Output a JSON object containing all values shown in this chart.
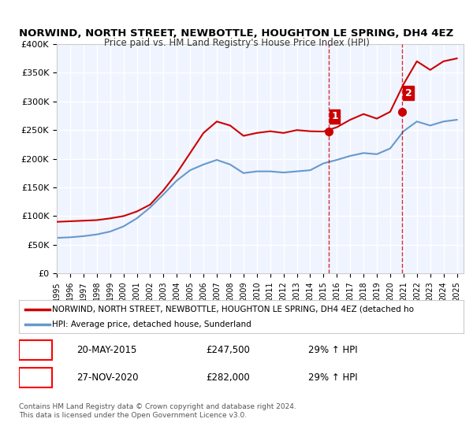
{
  "title": "NORWIND, NORTH STREET, NEWBOTTLE, HOUGHTON LE SPRING, DH4 4EZ",
  "subtitle": "Price paid vs. HM Land Registry's House Price Index (HPI)",
  "legend_red": "NORWIND, NORTH STREET, NEWBOTTLE, HOUGHTON LE SPRING, DH4 4EZ (detached ho",
  "legend_blue": "HPI: Average price, detached house, Sunderland",
  "footer": "Contains HM Land Registry data © Crown copyright and database right 2024.\nThis data is licensed under the Open Government Licence v3.0.",
  "sale1_label": "1",
  "sale1_date": "20-MAY-2015",
  "sale1_price": "£247,500",
  "sale1_hpi": "29% ↑ HPI",
  "sale2_label": "2",
  "sale2_date": "27-NOV-2020",
  "sale2_price": "£282,000",
  "sale2_hpi": "29% ↑ HPI",
  "sale1_x": 2015.38,
  "sale1_y": 247500,
  "sale2_x": 2020.9,
  "sale2_y": 282000,
  "ylim": [
    0,
    400000
  ],
  "xlim": [
    1995,
    2025.5
  ],
  "background_color": "#ffffff",
  "plot_bg_color": "#f0f4ff",
  "grid_color": "#ffffff",
  "red_color": "#cc0000",
  "blue_color": "#6699cc",
  "vline_color": "#cc0000",
  "years_red": [
    1995,
    1996,
    1997,
    1998,
    1999,
    2000,
    2001,
    2002,
    2003,
    2004,
    2005,
    2006,
    2007,
    2008,
    2009,
    2010,
    2011,
    2012,
    2013,
    2014,
    2015,
    2016,
    2017,
    2018,
    2019,
    2020,
    2021,
    2022,
    2023,
    2024,
    2025
  ],
  "values_red": [
    90000,
    91000,
    92000,
    93000,
    96000,
    100000,
    108000,
    120000,
    145000,
    175000,
    210000,
    245000,
    265000,
    258000,
    240000,
    245000,
    248000,
    245000,
    250000,
    248000,
    247500,
    255000,
    268000,
    278000,
    270000,
    282000,
    330000,
    370000,
    355000,
    370000,
    375000
  ],
  "years_blue": [
    1995,
    1996,
    1997,
    1998,
    1999,
    2000,
    2001,
    2002,
    2003,
    2004,
    2005,
    2006,
    2007,
    2008,
    2009,
    2010,
    2011,
    2012,
    2013,
    2014,
    2015,
    2016,
    2017,
    2018,
    2019,
    2020,
    2021,
    2022,
    2023,
    2024,
    2025
  ],
  "values_blue": [
    62000,
    63000,
    65000,
    68000,
    73000,
    82000,
    96000,
    115000,
    138000,
    162000,
    180000,
    190000,
    198000,
    190000,
    175000,
    178000,
    178000,
    176000,
    178000,
    180000,
    192000,
    198000,
    205000,
    210000,
    208000,
    218000,
    248000,
    265000,
    258000,
    265000,
    268000
  ]
}
